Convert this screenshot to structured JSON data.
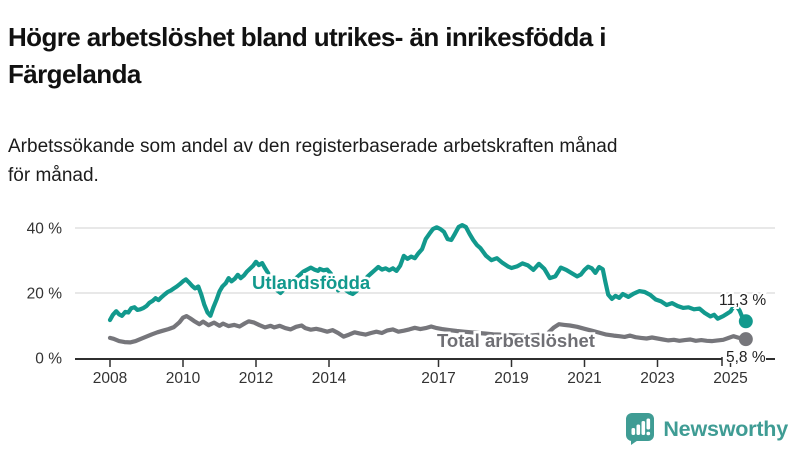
{
  "header": {
    "title_line1": "Högre arbetslöshet bland utrikes- än inrikesfödda i",
    "title_line2": "Färgelanda",
    "subtitle_line1": "Arbetssökande som andel av den registerbaserade arbetskraften månad",
    "subtitle_line2": "för månad."
  },
  "footer": {
    "brand": "Newsworthy",
    "brand_color": "#3f9c94"
  },
  "chart_data": {
    "type": "line",
    "title": "Högre arbetslöshet bland utrikes- än inrikesfödda i Färgelanda",
    "subtitle": "Arbetssökande som andel av den registerbaserade arbetskraften månad för månad.",
    "unit": "%",
    "xlim": [
      2007.0,
      2026.2
    ],
    "ylim": [
      0,
      44
    ],
    "grid": "horizontal",
    "colors": {
      "axis": "#2f2f2f",
      "gridline": "#d9d9d9",
      "tick_label": "#333333"
    },
    "x_ticks": [
      {
        "year": 2008,
        "label": "2008"
      },
      {
        "year": 2010,
        "label": "2010"
      },
      {
        "year": 2012,
        "label": "2012"
      },
      {
        "year": 2014,
        "label": "2014"
      },
      {
        "year": 2017,
        "label": "2017"
      },
      {
        "year": 2019,
        "label": "2019"
      },
      {
        "year": 2021,
        "label": "2021"
      },
      {
        "year": 2023,
        "label": "2023"
      },
      {
        "year": 2025,
        "label": "2025"
      }
    ],
    "y_ticks": [
      {
        "value": 0,
        "label": "0 %"
      },
      {
        "value": 20,
        "label": "20 %"
      },
      {
        "value": 40,
        "label": "40 %"
      }
    ],
    "series": [
      {
        "name": "Utlandsfödda",
        "color": "#12998d",
        "end_value": 11.3,
        "end_label": "11,3 %",
        "points": [
          [
            2008.0,
            11.7
          ],
          [
            2008.08,
            13.3
          ],
          [
            2008.17,
            14.4
          ],
          [
            2008.25,
            13.4
          ],
          [
            2008.33,
            13.0
          ],
          [
            2008.42,
            14.2
          ],
          [
            2008.5,
            14.0
          ],
          [
            2008.58,
            15.3
          ],
          [
            2008.67,
            15.6
          ],
          [
            2008.75,
            14.8
          ],
          [
            2008.83,
            15.0
          ],
          [
            2008.92,
            15.4
          ],
          [
            2009.0,
            16.0
          ],
          [
            2009.08,
            17.0
          ],
          [
            2009.17,
            17.6
          ],
          [
            2009.25,
            18.4
          ],
          [
            2009.33,
            17.8
          ],
          [
            2009.42,
            18.8
          ],
          [
            2009.5,
            19.6
          ],
          [
            2009.58,
            20.3
          ],
          [
            2009.67,
            20.8
          ],
          [
            2009.75,
            21.4
          ],
          [
            2009.83,
            22.0
          ],
          [
            2009.92,
            22.8
          ],
          [
            2010.0,
            23.6
          ],
          [
            2010.08,
            24.2
          ],
          [
            2010.17,
            23.2
          ],
          [
            2010.25,
            22.2
          ],
          [
            2010.33,
            21.4
          ],
          [
            2010.42,
            22.0
          ],
          [
            2010.5,
            19.5
          ],
          [
            2010.58,
            16.5
          ],
          [
            2010.67,
            14.0
          ],
          [
            2010.75,
            13.0
          ],
          [
            2010.83,
            15.5
          ],
          [
            2010.92,
            18.0
          ],
          [
            2011.0,
            20.5
          ],
          [
            2011.08,
            22.0
          ],
          [
            2011.17,
            23.0
          ],
          [
            2011.25,
            24.6
          ],
          [
            2011.33,
            23.6
          ],
          [
            2011.42,
            24.4
          ],
          [
            2011.5,
            25.6
          ],
          [
            2011.58,
            24.6
          ],
          [
            2011.67,
            25.4
          ],
          [
            2011.75,
            26.6
          ],
          [
            2011.83,
            27.4
          ],
          [
            2011.92,
            28.4
          ],
          [
            2012.0,
            29.6
          ],
          [
            2012.08,
            28.6
          ],
          [
            2012.17,
            29.2
          ],
          [
            2012.25,
            27.6
          ],
          [
            2012.33,
            26.2
          ],
          [
            2012.42,
            24.4
          ],
          [
            2012.5,
            22.6
          ],
          [
            2012.58,
            20.8
          ],
          [
            2012.67,
            20.0
          ],
          [
            2012.75,
            21.0
          ],
          [
            2012.83,
            21.8
          ],
          [
            2012.92,
            22.6
          ],
          [
            2013.0,
            23.4
          ],
          [
            2013.1,
            24.6
          ],
          [
            2013.2,
            25.6
          ],
          [
            2013.3,
            26.6
          ],
          [
            2013.4,
            27.2
          ],
          [
            2013.5,
            27.8
          ],
          [
            2013.6,
            27.2
          ],
          [
            2013.7,
            26.8
          ],
          [
            2013.75,
            27.4
          ],
          [
            2013.85,
            27.0
          ],
          [
            2013.95,
            27.2
          ],
          [
            2014.05,
            26.0
          ],
          [
            2014.15,
            23.6
          ],
          [
            2014.25,
            20.8
          ],
          [
            2014.35,
            21.6
          ],
          [
            2014.45,
            21.0
          ],
          [
            2014.55,
            20.2
          ],
          [
            2014.65,
            19.7
          ],
          [
            2014.75,
            20.6
          ],
          [
            2014.85,
            21.6
          ],
          [
            2014.95,
            23.2
          ],
          [
            2015.05,
            25.0
          ],
          [
            2015.15,
            26.0
          ],
          [
            2015.25,
            27.0
          ],
          [
            2015.35,
            28.0
          ],
          [
            2015.45,
            27.2
          ],
          [
            2015.55,
            27.6
          ],
          [
            2015.65,
            27.0
          ],
          [
            2015.75,
            27.6
          ],
          [
            2015.85,
            26.8
          ],
          [
            2015.95,
            28.4
          ],
          [
            2016.05,
            31.4
          ],
          [
            2016.15,
            30.5
          ],
          [
            2016.25,
            31.2
          ],
          [
            2016.35,
            30.7
          ],
          [
            2016.45,
            32.2
          ],
          [
            2016.55,
            33.5
          ],
          [
            2016.65,
            36.6
          ],
          [
            2016.75,
            38.2
          ],
          [
            2016.85,
            39.7
          ],
          [
            2016.95,
            40.2
          ],
          [
            2017.05,
            39.7
          ],
          [
            2017.15,
            38.8
          ],
          [
            2017.25,
            36.6
          ],
          [
            2017.35,
            36.3
          ],
          [
            2017.45,
            38.2
          ],
          [
            2017.55,
            40.3
          ],
          [
            2017.65,
            40.9
          ],
          [
            2017.75,
            40.3
          ],
          [
            2017.85,
            38.2
          ],
          [
            2017.95,
            36.3
          ],
          [
            2018.05,
            34.8
          ],
          [
            2018.15,
            33.8
          ],
          [
            2018.3,
            31.5
          ],
          [
            2018.45,
            30.1
          ],
          [
            2018.6,
            30.7
          ],
          [
            2018.75,
            29.3
          ],
          [
            2018.9,
            28.2
          ],
          [
            2019.0,
            27.7
          ],
          [
            2019.15,
            28.2
          ],
          [
            2019.3,
            29.1
          ],
          [
            2019.45,
            28.5
          ],
          [
            2019.6,
            27.1
          ],
          [
            2019.75,
            29.0
          ],
          [
            2019.9,
            27.4
          ],
          [
            2020.05,
            24.6
          ],
          [
            2020.2,
            25.1
          ],
          [
            2020.35,
            27.8
          ],
          [
            2020.5,
            27.1
          ],
          [
            2020.65,
            26.1
          ],
          [
            2020.8,
            25.1
          ],
          [
            2020.9,
            25.7
          ],
          [
            2021.0,
            27.1
          ],
          [
            2021.1,
            28.1
          ],
          [
            2021.2,
            27.6
          ],
          [
            2021.3,
            26.2
          ],
          [
            2021.4,
            28.0
          ],
          [
            2021.5,
            27.3
          ],
          [
            2021.57,
            23.5
          ],
          [
            2021.65,
            19.5
          ],
          [
            2021.75,
            18.2
          ],
          [
            2021.85,
            19.1
          ],
          [
            2021.95,
            18.5
          ],
          [
            2022.05,
            19.7
          ],
          [
            2022.2,
            18.8
          ],
          [
            2022.35,
            19.8
          ],
          [
            2022.5,
            20.6
          ],
          [
            2022.65,
            20.3
          ],
          [
            2022.8,
            19.4
          ],
          [
            2022.95,
            18.0
          ],
          [
            2023.1,
            17.4
          ],
          [
            2023.25,
            16.3
          ],
          [
            2023.4,
            16.9
          ],
          [
            2023.55,
            16.0
          ],
          [
            2023.7,
            15.4
          ],
          [
            2023.85,
            15.6
          ],
          [
            2024.0,
            15.0
          ],
          [
            2024.15,
            15.2
          ],
          [
            2024.3,
            13.8
          ],
          [
            2024.45,
            12.8
          ],
          [
            2024.55,
            13.3
          ],
          [
            2024.65,
            12.1
          ],
          [
            2024.8,
            12.9
          ],
          [
            2024.9,
            13.6
          ],
          [
            2025.0,
            14.3
          ],
          [
            2025.1,
            16.1
          ],
          [
            2025.17,
            15.9
          ],
          [
            2025.25,
            14.6
          ],
          [
            2025.33,
            12.4
          ],
          [
            2025.42,
            11.3
          ]
        ]
      },
      {
        "name": "Total arbetslöshet",
        "color": "#76767b",
        "end_value": 5.8,
        "end_label": "5,8 %",
        "points": [
          [
            2008.0,
            6.2
          ],
          [
            2008.1,
            5.9
          ],
          [
            2008.25,
            5.2
          ],
          [
            2008.4,
            4.9
          ],
          [
            2008.55,
            4.8
          ],
          [
            2008.7,
            5.2
          ],
          [
            2008.85,
            5.9
          ],
          [
            2009.0,
            6.6
          ],
          [
            2009.15,
            7.3
          ],
          [
            2009.3,
            7.9
          ],
          [
            2009.45,
            8.4
          ],
          [
            2009.6,
            8.9
          ],
          [
            2009.75,
            9.5
          ],
          [
            2009.9,
            11.0
          ],
          [
            2010.0,
            12.4
          ],
          [
            2010.1,
            12.9
          ],
          [
            2010.2,
            12.2
          ],
          [
            2010.3,
            11.4
          ],
          [
            2010.45,
            10.4
          ],
          [
            2010.55,
            11.2
          ],
          [
            2010.7,
            10.1
          ],
          [
            2010.85,
            10.9
          ],
          [
            2011.0,
            9.9
          ],
          [
            2011.1,
            10.6
          ],
          [
            2011.25,
            9.8
          ],
          [
            2011.4,
            10.2
          ],
          [
            2011.55,
            9.7
          ],
          [
            2011.7,
            10.7
          ],
          [
            2011.8,
            11.3
          ],
          [
            2011.95,
            10.9
          ],
          [
            2012.1,
            10.1
          ],
          [
            2012.25,
            9.4
          ],
          [
            2012.4,
            9.9
          ],
          [
            2012.5,
            9.4
          ],
          [
            2012.65,
            9.9
          ],
          [
            2012.8,
            9.2
          ],
          [
            2012.95,
            8.8
          ],
          [
            2013.1,
            9.6
          ],
          [
            2013.25,
            10.0
          ],
          [
            2013.35,
            9.2
          ],
          [
            2013.5,
            8.7
          ],
          [
            2013.65,
            9.0
          ],
          [
            2013.8,
            8.6
          ],
          [
            2013.95,
            8.1
          ],
          [
            2014.1,
            8.6
          ],
          [
            2014.25,
            7.7
          ],
          [
            2014.4,
            6.6
          ],
          [
            2014.55,
            7.2
          ],
          [
            2014.7,
            7.9
          ],
          [
            2014.85,
            7.5
          ],
          [
            2015.0,
            7.2
          ],
          [
            2015.15,
            7.7
          ],
          [
            2015.3,
            8.1
          ],
          [
            2015.45,
            7.7
          ],
          [
            2015.6,
            8.5
          ],
          [
            2015.75,
            8.8
          ],
          [
            2015.9,
            8.1
          ],
          [
            2016.05,
            8.4
          ],
          [
            2016.2,
            8.8
          ],
          [
            2016.35,
            9.3
          ],
          [
            2016.5,
            8.9
          ],
          [
            2016.65,
            9.2
          ],
          [
            2016.8,
            9.7
          ],
          [
            2016.95,
            9.2
          ],
          [
            2017.1,
            8.9
          ],
          [
            2017.3,
            8.6
          ],
          [
            2017.5,
            8.3
          ],
          [
            2017.7,
            8.1
          ],
          [
            2017.9,
            7.9
          ],
          [
            2018.1,
            7.7
          ],
          [
            2018.3,
            7.5
          ],
          [
            2018.5,
            7.3
          ],
          [
            2018.7,
            7.2
          ],
          [
            2018.9,
            7.1
          ],
          [
            2019.1,
            7.0
          ],
          [
            2019.3,
            6.9
          ],
          [
            2019.5,
            6.9
          ],
          [
            2019.75,
            7.1
          ],
          [
            2020.0,
            7.7
          ],
          [
            2020.15,
            9.3
          ],
          [
            2020.3,
            10.4
          ],
          [
            2020.45,
            10.2
          ],
          [
            2020.6,
            10.0
          ],
          [
            2020.8,
            9.6
          ],
          [
            2021.0,
            9.0
          ],
          [
            2021.2,
            8.4
          ],
          [
            2021.4,
            7.8
          ],
          [
            2021.6,
            7.2
          ],
          [
            2021.8,
            6.9
          ],
          [
            2021.95,
            6.7
          ],
          [
            2022.1,
            6.5
          ],
          [
            2022.25,
            6.9
          ],
          [
            2022.4,
            6.4
          ],
          [
            2022.55,
            6.2
          ],
          [
            2022.7,
            6.0
          ],
          [
            2022.85,
            6.3
          ],
          [
            2023.0,
            6.0
          ],
          [
            2023.15,
            5.7
          ],
          [
            2023.3,
            5.4
          ],
          [
            2023.45,
            5.6
          ],
          [
            2023.6,
            5.3
          ],
          [
            2023.75,
            5.5
          ],
          [
            2023.9,
            5.7
          ],
          [
            2024.05,
            5.3
          ],
          [
            2024.2,
            5.5
          ],
          [
            2024.35,
            5.3
          ],
          [
            2024.5,
            5.2
          ],
          [
            2024.65,
            5.4
          ],
          [
            2024.8,
            5.6
          ],
          [
            2024.95,
            6.2
          ],
          [
            2025.08,
            6.7
          ],
          [
            2025.2,
            6.3
          ],
          [
            2025.3,
            6.0
          ],
          [
            2025.42,
            5.8
          ]
        ]
      }
    ]
  }
}
